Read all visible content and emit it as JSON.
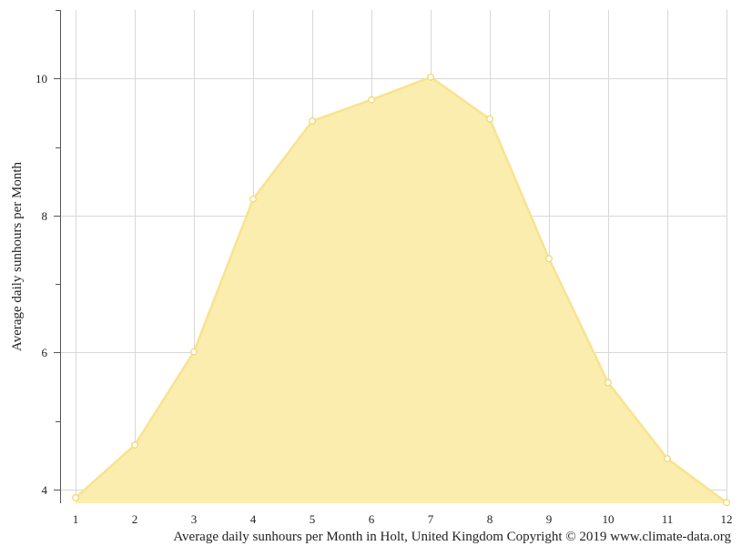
{
  "chart_data": {
    "type": "area",
    "title": "",
    "ylabel": "Average daily sunhours per Month",
    "xlabel": "",
    "caption": "Average daily sunhours per Month in Holt, United Kingdom Copyright © 2019 www.climate-data.org",
    "x": [
      1,
      2,
      3,
      4,
      5,
      6,
      7,
      8,
      9,
      10,
      11,
      12
    ],
    "x_tick_labels": [
      "1",
      "2",
      "3",
      "4",
      "5",
      "6",
      "7",
      "8",
      "9",
      "10",
      "11",
      "12"
    ],
    "series": [
      {
        "values": [
          3.88,
          4.65,
          6.01,
          8.24,
          9.38,
          9.69,
          10.02,
          9.41,
          7.37,
          5.56,
          4.45,
          3.81
        ]
      }
    ],
    "y_major_ticks": [
      4,
      6,
      8,
      10
    ],
    "y_minor_ticks": [
      5,
      7,
      9,
      11
    ],
    "ylim": [
      3.8,
      11
    ],
    "xlim": [
      1,
      12
    ],
    "grid": true,
    "colors": {
      "fill": "#faedae",
      "line": "#f8e38f",
      "point_stroke": "#f2d873",
      "grid": "#d8d8d8"
    }
  }
}
